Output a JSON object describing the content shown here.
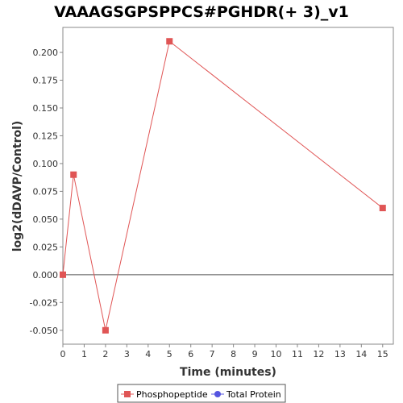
{
  "chart_data": {
    "type": "line",
    "title": "VAAAGSGPSPPCS#PGHDR(+ 3)_v1",
    "xlabel": "Time (minutes)",
    "ylabel": "log2(dDAVP/Control)",
    "xlim": [
      0,
      15.5
    ],
    "ylim": [
      -0.0625,
      0.2225
    ],
    "x_ticks": [
      0,
      1,
      2,
      3,
      4,
      5,
      6,
      7,
      8,
      9,
      10,
      11,
      12,
      13,
      14,
      15
    ],
    "y_ticks": [
      -0.05,
      -0.025,
      0.0,
      0.025,
      0.05,
      0.075,
      0.1,
      0.125,
      0.15,
      0.175,
      0.2
    ],
    "y_tick_labels": [
      "-0.050",
      "-0.025",
      "0.000",
      "0.025",
      "0.050",
      "0.075",
      "0.100",
      "0.125",
      "0.150",
      "0.175",
      "0.200"
    ],
    "x_tick_labels": [
      "0",
      "1",
      "2",
      "3",
      "4",
      "5",
      "6",
      "7",
      "8",
      "9",
      "10",
      "11",
      "12",
      "13",
      "14",
      "15"
    ],
    "grid": false,
    "zero_line": true,
    "legend_position": "bottom",
    "series": [
      {
        "name": "Phosphopeptide",
        "color": "#e05555",
        "marker": "square",
        "x": [
          0,
          0.5,
          2,
          5,
          15
        ],
        "values": [
          0.0,
          0.09,
          -0.05,
          0.21,
          0.06
        ]
      },
      {
        "name": "Total Protein",
        "color": "#5555e0",
        "marker": "circle",
        "x": [],
        "values": []
      }
    ]
  }
}
